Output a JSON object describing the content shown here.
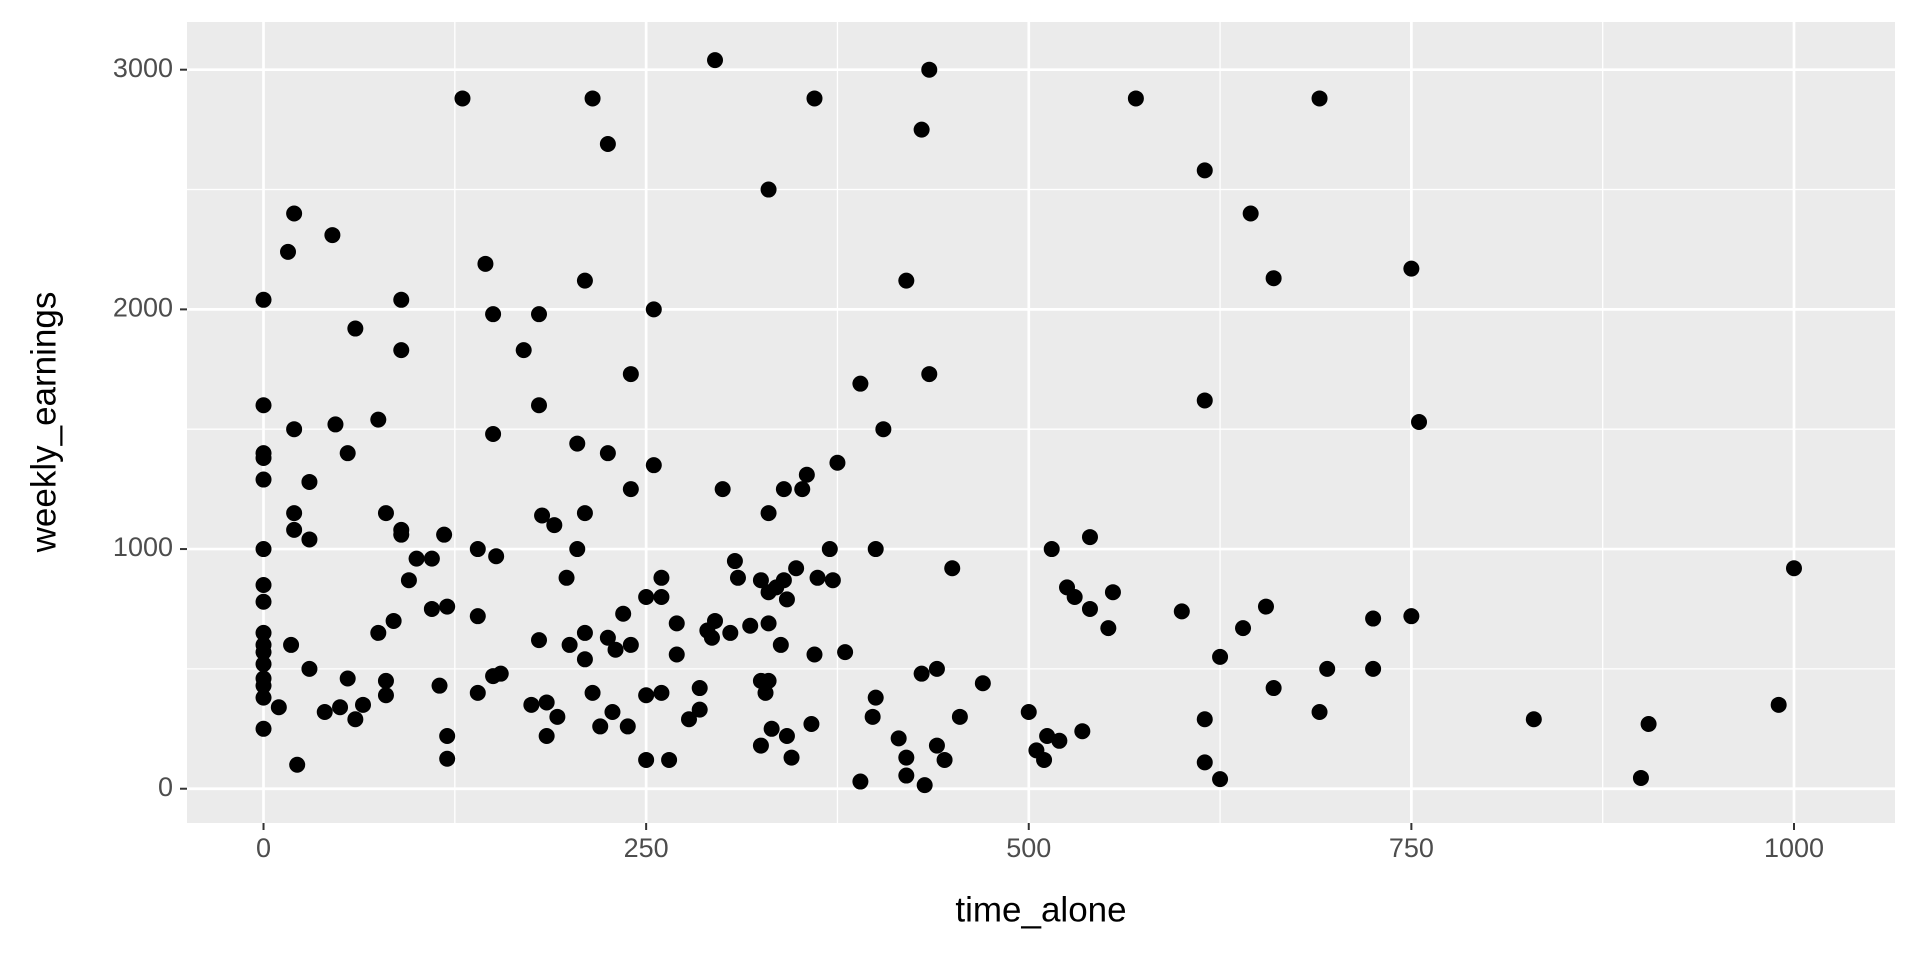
{
  "chart_data": {
    "type": "scatter",
    "x_label": "time_alone",
    "y_label": "weekly_earnings",
    "xlim": [
      -50,
      1066
    ],
    "ylim": [
      -143,
      3199
    ],
    "xticks": [
      0,
      250,
      500,
      750,
      1000
    ],
    "yticks": [
      0,
      1000,
      2000,
      3000
    ],
    "grid": true,
    "color": "#000000",
    "series": [
      {
        "x": [
          0,
          0,
          0,
          0,
          0,
          0,
          0,
          0,
          0,
          0,
          0,
          0,
          0,
          0,
          0,
          0,
          10,
          16,
          20,
          18,
          20,
          20,
          20,
          22,
          30,
          30,
          30,
          40,
          45,
          47,
          50,
          55,
          55,
          60,
          60,
          65,
          75,
          75,
          80,
          80,
          80,
          85,
          90,
          90,
          90,
          90,
          95,
          100,
          110,
          110,
          115,
          130,
          118,
          120,
          120,
          120,
          140,
          140,
          140,
          145,
          150,
          150,
          150,
          152,
          155,
          170,
          175,
          180,
          180,
          180,
          182,
          185,
          185,
          190,
          192,
          198,
          200,
          205,
          205,
          210,
          210,
          210,
          210,
          215,
          215,
          220,
          225,
          225,
          225,
          228,
          230,
          235,
          238,
          240,
          240,
          240,
          250,
          250,
          250,
          255,
          255,
          260,
          260,
          260,
          265,
          270,
          270,
          278,
          285,
          285,
          290,
          293,
          295,
          295,
          300,
          305,
          308,
          310,
          318,
          325,
          325,
          325,
          328,
          330,
          330,
          330,
          330,
          330,
          332,
          335,
          338,
          340,
          340,
          342,
          342,
          345,
          348,
          352,
          358,
          355,
          360,
          362,
          360,
          370,
          372,
          375,
          380,
          390,
          390,
          398,
          400,
          400,
          405,
          415,
          420,
          420,
          420,
          430,
          430,
          435,
          435,
          432,
          440,
          440,
          445,
          450,
          455,
          470,
          500,
          505,
          510,
          512,
          515,
          520,
          525,
          530,
          535,
          540,
          540,
          552,
          555,
          570,
          600,
          615,
          615,
          615,
          615,
          625,
          625,
          640,
          645,
          655,
          660,
          660,
          690,
          690,
          695,
          725,
          725,
          750,
          750,
          755,
          830,
          900,
          905,
          990,
          1000
        ],
        "y": [
          2040,
          1600,
          1400,
          1380,
          1290,
          1000,
          850,
          780,
          650,
          600,
          570,
          520,
          460,
          430,
          380,
          250,
          340,
          2240,
          2400,
          600,
          1500,
          1150,
          1080,
          100,
          1280,
          1040,
          500,
          320,
          2310,
          1520,
          340,
          1400,
          460,
          1920,
          290,
          350,
          1540,
          650,
          1150,
          450,
          390,
          700,
          2040,
          1830,
          1080,
          1060,
          870,
          960,
          960,
          750,
          430,
          2880,
          1060,
          760,
          220,
          125,
          1000,
          720,
          400,
          2190,
          1980,
          1480,
          470,
          970,
          480,
          1830,
          350,
          1980,
          1600,
          620,
          1140,
          360,
          220,
          1100,
          300,
          880,
          600,
          1440,
          1000,
          2120,
          1150,
          650,
          540,
          2880,
          400,
          260,
          2690,
          1400,
          630,
          320,
          580,
          730,
          260,
          1250,
          1730,
          600,
          800,
          390,
          120,
          2000,
          1350,
          880,
          800,
          400,
          120,
          690,
          560,
          290,
          420,
          330,
          660,
          630,
          700,
          3040,
          1250,
          650,
          950,
          880,
          680,
          870,
          450,
          180,
          400,
          2500,
          1150,
          820,
          690,
          450,
          250,
          840,
          600,
          870,
          1250,
          790,
          220,
          130,
          920,
          1250,
          270,
          1310,
          560,
          880,
          2880,
          1000,
          870,
          1360,
          570,
          1690,
          30,
          300,
          1000,
          380,
          1500,
          210,
          2120,
          130,
          55,
          2750,
          480,
          3000,
          1730,
          15,
          500,
          180,
          120,
          920,
          300,
          440,
          320,
          160,
          120,
          220,
          1000,
          200,
          840,
          800,
          240,
          1050,
          750,
          670,
          820,
          2880,
          740,
          2580,
          1620,
          290,
          110,
          40,
          550,
          670,
          2400,
          760,
          2130,
          420,
          2880,
          320,
          500,
          710,
          500,
          2170,
          720,
          1530,
          290,
          45,
          270,
          350,
          920
        ]
      }
    ]
  }
}
